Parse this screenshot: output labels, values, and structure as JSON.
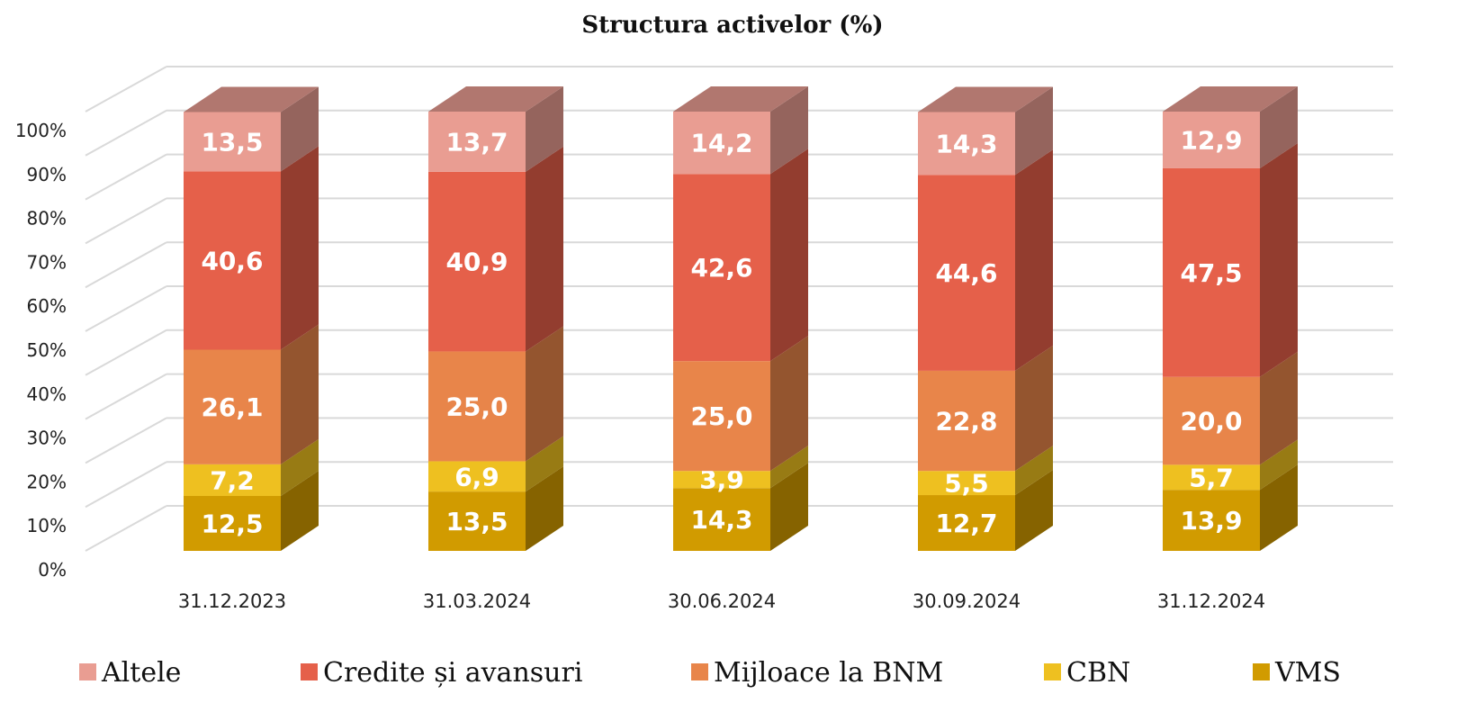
{
  "chart_data": {
    "type": "bar",
    "stacked": true,
    "three_d": true,
    "title": "Structura activelor (%)",
    "xlabel": "",
    "ylabel": "",
    "ylim": [
      0,
      100
    ],
    "yticks": [
      0,
      10,
      20,
      30,
      40,
      50,
      60,
      70,
      80,
      90,
      100
    ],
    "yticks_labels": [
      "0%",
      "10%",
      "20%",
      "30%",
      "40%",
      "50%",
      "60%",
      "70%",
      "80%",
      "90%",
      "100%"
    ],
    "grid": true,
    "legend_position": "bottom",
    "categories": [
      "31.12.2023",
      "31.03.2024",
      "30.06.2024",
      "30.09.2024",
      "31.12.2024"
    ],
    "series": [
      {
        "name": "VMS",
        "color": "#D19B00",
        "values": [
          "12,5",
          "13,5",
          "14,3",
          "12,7",
          "13,9"
        ]
      },
      {
        "name": "CBN",
        "color": "#EEC020",
        "values": [
          "7,2",
          "6,9",
          "3,9",
          "5,5",
          "5,7"
        ]
      },
      {
        "name": "Mijloace la BNM",
        "color": "#E8854A",
        "values": [
          "26,1",
          "25,0",
          "25,0",
          "22,8",
          "20,0"
        ]
      },
      {
        "name": "Credite și avansuri",
        "color": "#E5604A",
        "values": [
          "40,6",
          "40,9",
          "42,6",
          "44,6",
          "47,5"
        ]
      },
      {
        "name": "Altele",
        "color": "#E99D92",
        "values": [
          "13,5",
          "13,7",
          "14,2",
          "14,3",
          "12,9"
        ]
      }
    ],
    "legend_order": [
      "Altele",
      "Credite și avansuri",
      "Mijloace la BNM",
      "CBN",
      "VMS"
    ]
  }
}
